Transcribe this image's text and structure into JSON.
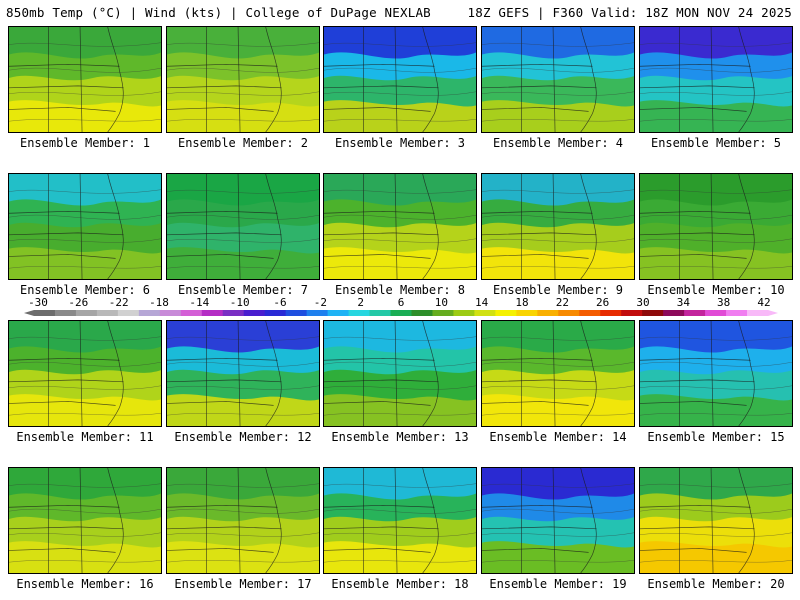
{
  "header": {
    "left": "850mb Temp (°C) | Wind (kts) | College of DuPage NEXLAB",
    "right": "18Z GEFS | F360 Valid: 18Z MON NOV 24 2025"
  },
  "colorbar": {
    "ticks": [
      "-30",
      "-26",
      "-22",
      "-18",
      "-14",
      "-10",
      "-6",
      "-2",
      "2",
      "6",
      "10",
      "14",
      "18",
      "22",
      "26",
      "30",
      "34",
      "38",
      "42"
    ],
    "colors": [
      "#6d6d6d",
      "#8a8a8a",
      "#a6a6a6",
      "#b9b9b9",
      "#d1d1d1",
      "#b6a7d6",
      "#c88ad8",
      "#d45fd6",
      "#b52dc5",
      "#7a2fc4",
      "#4a1ecf",
      "#2a2ad6",
      "#1f4fe0",
      "#1f80ee",
      "#1fb3f5",
      "#27d6e0",
      "#23c9a7",
      "#1aae55",
      "#2e8f2a",
      "#66ad1f",
      "#9ccb14",
      "#d1e112",
      "#f5f100",
      "#f9d400",
      "#f9b000",
      "#f78a00",
      "#f45c00",
      "#e72b00",
      "#c20d0d",
      "#8e0a0a",
      "#8d0a5a",
      "#c3249d",
      "#e14bd6",
      "#f07df0",
      "#f8b9f8"
    ]
  },
  "panels": [
    {
      "label": "Ensemble Member: 1",
      "c": [
        "#3aa83a",
        "#5fb82a",
        "#b0d41a",
        "#e8e80a"
      ]
    },
    {
      "label": "Ensemble Member: 2",
      "c": [
        "#49b03a",
        "#7cc22a",
        "#b5d51c",
        "#d6df12"
      ]
    },
    {
      "label": "Ensemble Member: 3",
      "c": [
        "#1f3fd8",
        "#1ab8e8",
        "#2db56a",
        "#b9d21a"
      ]
    },
    {
      "label": "Ensemble Member: 4",
      "c": [
        "#1f6ae2",
        "#22c3d6",
        "#3ab85a",
        "#a8cf1c"
      ]
    },
    {
      "label": "Ensemble Member: 5",
      "c": [
        "#3a2ad0",
        "#1f90ec",
        "#24c4c4",
        "#36b453"
      ]
    },
    {
      "label": "Ensemble Member: 6",
      "c": [
        "#22bfc8",
        "#2fb352",
        "#48ad2e",
        "#82c224"
      ]
    },
    {
      "label": "Ensemble Member: 7",
      "c": [
        "#1aa645",
        "#2aa84a",
        "#2fb36a",
        "#3fae3a"
      ]
    },
    {
      "label": "Ensemble Member: 8",
      "c": [
        "#2aa858",
        "#4cb22c",
        "#b5d31a",
        "#ece90a"
      ]
    },
    {
      "label": "Ensemble Member: 9",
      "c": [
        "#23b2c8",
        "#36ac40",
        "#a6cd1c",
        "#f2e40a"
      ]
    },
    {
      "label": "Ensemble Member: 10",
      "c": [
        "#2b9c2c",
        "#3aaa34",
        "#4fb02a",
        "#86c222"
      ]
    },
    {
      "label": "Ensemble Member: 11",
      "c": [
        "#2aa84a",
        "#4cb22c",
        "#b0d41a",
        "#e6e60c"
      ]
    },
    {
      "label": "Ensemble Member: 12",
      "c": [
        "#2a3fd6",
        "#1bbbd8",
        "#2fb35a",
        "#c0d718"
      ]
    },
    {
      "label": "Ensemble Member: 13",
      "c": [
        "#1db8e0",
        "#23c4a8",
        "#2fae3a",
        "#86c222"
      ]
    },
    {
      "label": "Ensemble Member: 14",
      "c": [
        "#2aaa48",
        "#5ab82c",
        "#c6da16",
        "#f1e60a"
      ]
    },
    {
      "label": "Ensemble Member: 15",
      "c": [
        "#1f55e0",
        "#1eb0ec",
        "#26c0b0",
        "#36b34a"
      ]
    },
    {
      "label": "Ensemble Member: 16",
      "c": [
        "#2fa83a",
        "#5fb82a",
        "#a8d01c",
        "#d8e012"
      ]
    },
    {
      "label": "Ensemble Member: 17",
      "c": [
        "#3aa83a",
        "#6ab92a",
        "#b2d21a",
        "#dce212"
      ]
    },
    {
      "label": "Ensemble Member: 18",
      "c": [
        "#1fb9d6",
        "#28b35a",
        "#a0cd1c",
        "#e8e60c"
      ]
    },
    {
      "label": "Ensemble Member: 19",
      "c": [
        "#2a2ad2",
        "#1f8ae8",
        "#24c2b2",
        "#6abd24"
      ]
    },
    {
      "label": "Ensemble Member: 20",
      "c": [
        "#2fa84a",
        "#9ccb1c",
        "#ecdf0a",
        "#f5c800"
      ]
    }
  ]
}
